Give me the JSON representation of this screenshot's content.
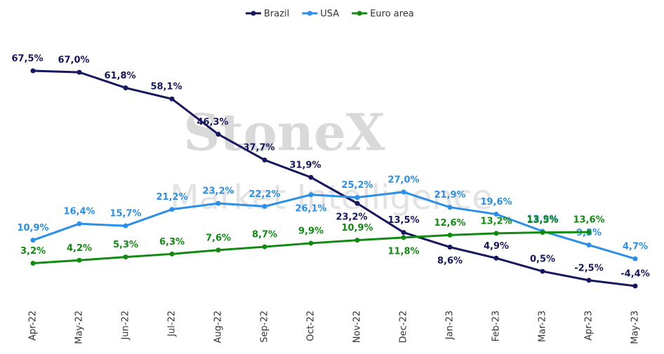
{
  "chart_data": {
    "type": "line",
    "annotations": [
      "StoneX",
      "Market Intelligence"
    ],
    "categories": [
      "Apr-22",
      "May-22",
      "Jun-22",
      "Jul-22",
      "Aug-22",
      "Sep-22",
      "Oct-22",
      "Nov-22",
      "Dec-22",
      "Jan-23",
      "Feb-23",
      "Mar-23",
      "Apr-23",
      "May-23"
    ],
    "series": [
      {
        "name": "Brazil",
        "color": "#17175e",
        "values": [
          67.5,
          67.0,
          61.8,
          58.1,
          46.3,
          37.7,
          31.9,
          23.2,
          13.5,
          8.6,
          4.9,
          0.5,
          -2.5,
          -4.4
        ],
        "value_labels": [
          "67,5%",
          "67,0%",
          "61,8%",
          "58,1%",
          "46,3%",
          "37,7%",
          "31,9%",
          "23,2%",
          "13,5%",
          "8,6%",
          "4,9%",
          "0,5%",
          "-2,5%",
          "-4,4%"
        ]
      },
      {
        "name": "USA",
        "color": "#2a8fe8",
        "values": [
          10.9,
          16.4,
          15.7,
          21.2,
          23.2,
          22.2,
          26.1,
          25.2,
          27.0,
          21.9,
          19.6,
          13.9,
          9.3,
          4.7
        ],
        "value_labels": [
          "10,9%",
          "16,4%",
          "15,7%",
          "21,2%",
          "23,2%",
          "22,2%",
          "26,1%",
          "25,2%",
          "27,0%",
          "21,9%",
          "19,6%",
          "13,9%",
          "9,3%",
          "4,7%"
        ]
      },
      {
        "name": "Euro area",
        "color": "#128a12",
        "values": [
          3.2,
          4.2,
          5.3,
          6.3,
          7.6,
          8.7,
          9.9,
          10.9,
          11.8,
          12.6,
          13.2,
          13.5,
          13.6,
          null
        ],
        "value_labels": [
          "3,2%",
          "4,2%",
          "5,3%",
          "6,3%",
          "7,6%",
          "8,7%",
          "9,9%",
          "10,9%",
          "11,8%",
          "12,6%",
          "13,2%",
          "13,5%",
          "13,6%",
          null
        ]
      }
    ],
    "legend": "top"
  }
}
